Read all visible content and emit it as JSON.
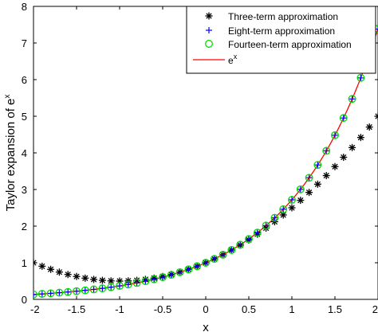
{
  "chart_data": {
    "type": "line",
    "title": "",
    "xlabel": "x",
    "ylabel": "Taylor expansion of e^x",
    "ylabel_parts": {
      "base": "Taylor expansion of e",
      "sup": "x"
    },
    "xlim": [
      -2,
      2
    ],
    "ylim": [
      0,
      8
    ],
    "xticks": [
      -2,
      -1.5,
      -1,
      -0.5,
      0,
      0.5,
      1,
      1.5,
      2
    ],
    "xtick_labels": [
      "-2",
      "-1.5",
      "-1",
      "-0.5",
      "0",
      "0.5",
      "1",
      "1.5",
      "2"
    ],
    "yticks": [
      0,
      1,
      2,
      3,
      4,
      5,
      6,
      7,
      8
    ],
    "ytick_labels": [
      "0",
      "1",
      "2",
      "3",
      "4",
      "5",
      "6",
      "7",
      "8"
    ],
    "grid": false,
    "legend_position": "top-right",
    "x_sample": {
      "start": -2,
      "end": 2,
      "step": 0.1
    },
    "series": [
      {
        "name": "Three-term approximation",
        "function": "1 + x + x^2/2",
        "marker": "asterisk",
        "color": "#000000"
      },
      {
        "name": "Eight-term approximation",
        "function": "sum_{k=0..7} x^k/k!",
        "marker": "plus",
        "color": "#0000ff"
      },
      {
        "name": "Fourteen-term approximation",
        "function": "sum_{k=0..13} x^k/k!",
        "marker": "circle",
        "color": "#00dd00"
      },
      {
        "name": "e^x",
        "name_parts": {
          "base": "e",
          "sup": "x"
        },
        "function": "exp(x)",
        "marker": "line",
        "color": "#ff0000"
      }
    ]
  }
}
